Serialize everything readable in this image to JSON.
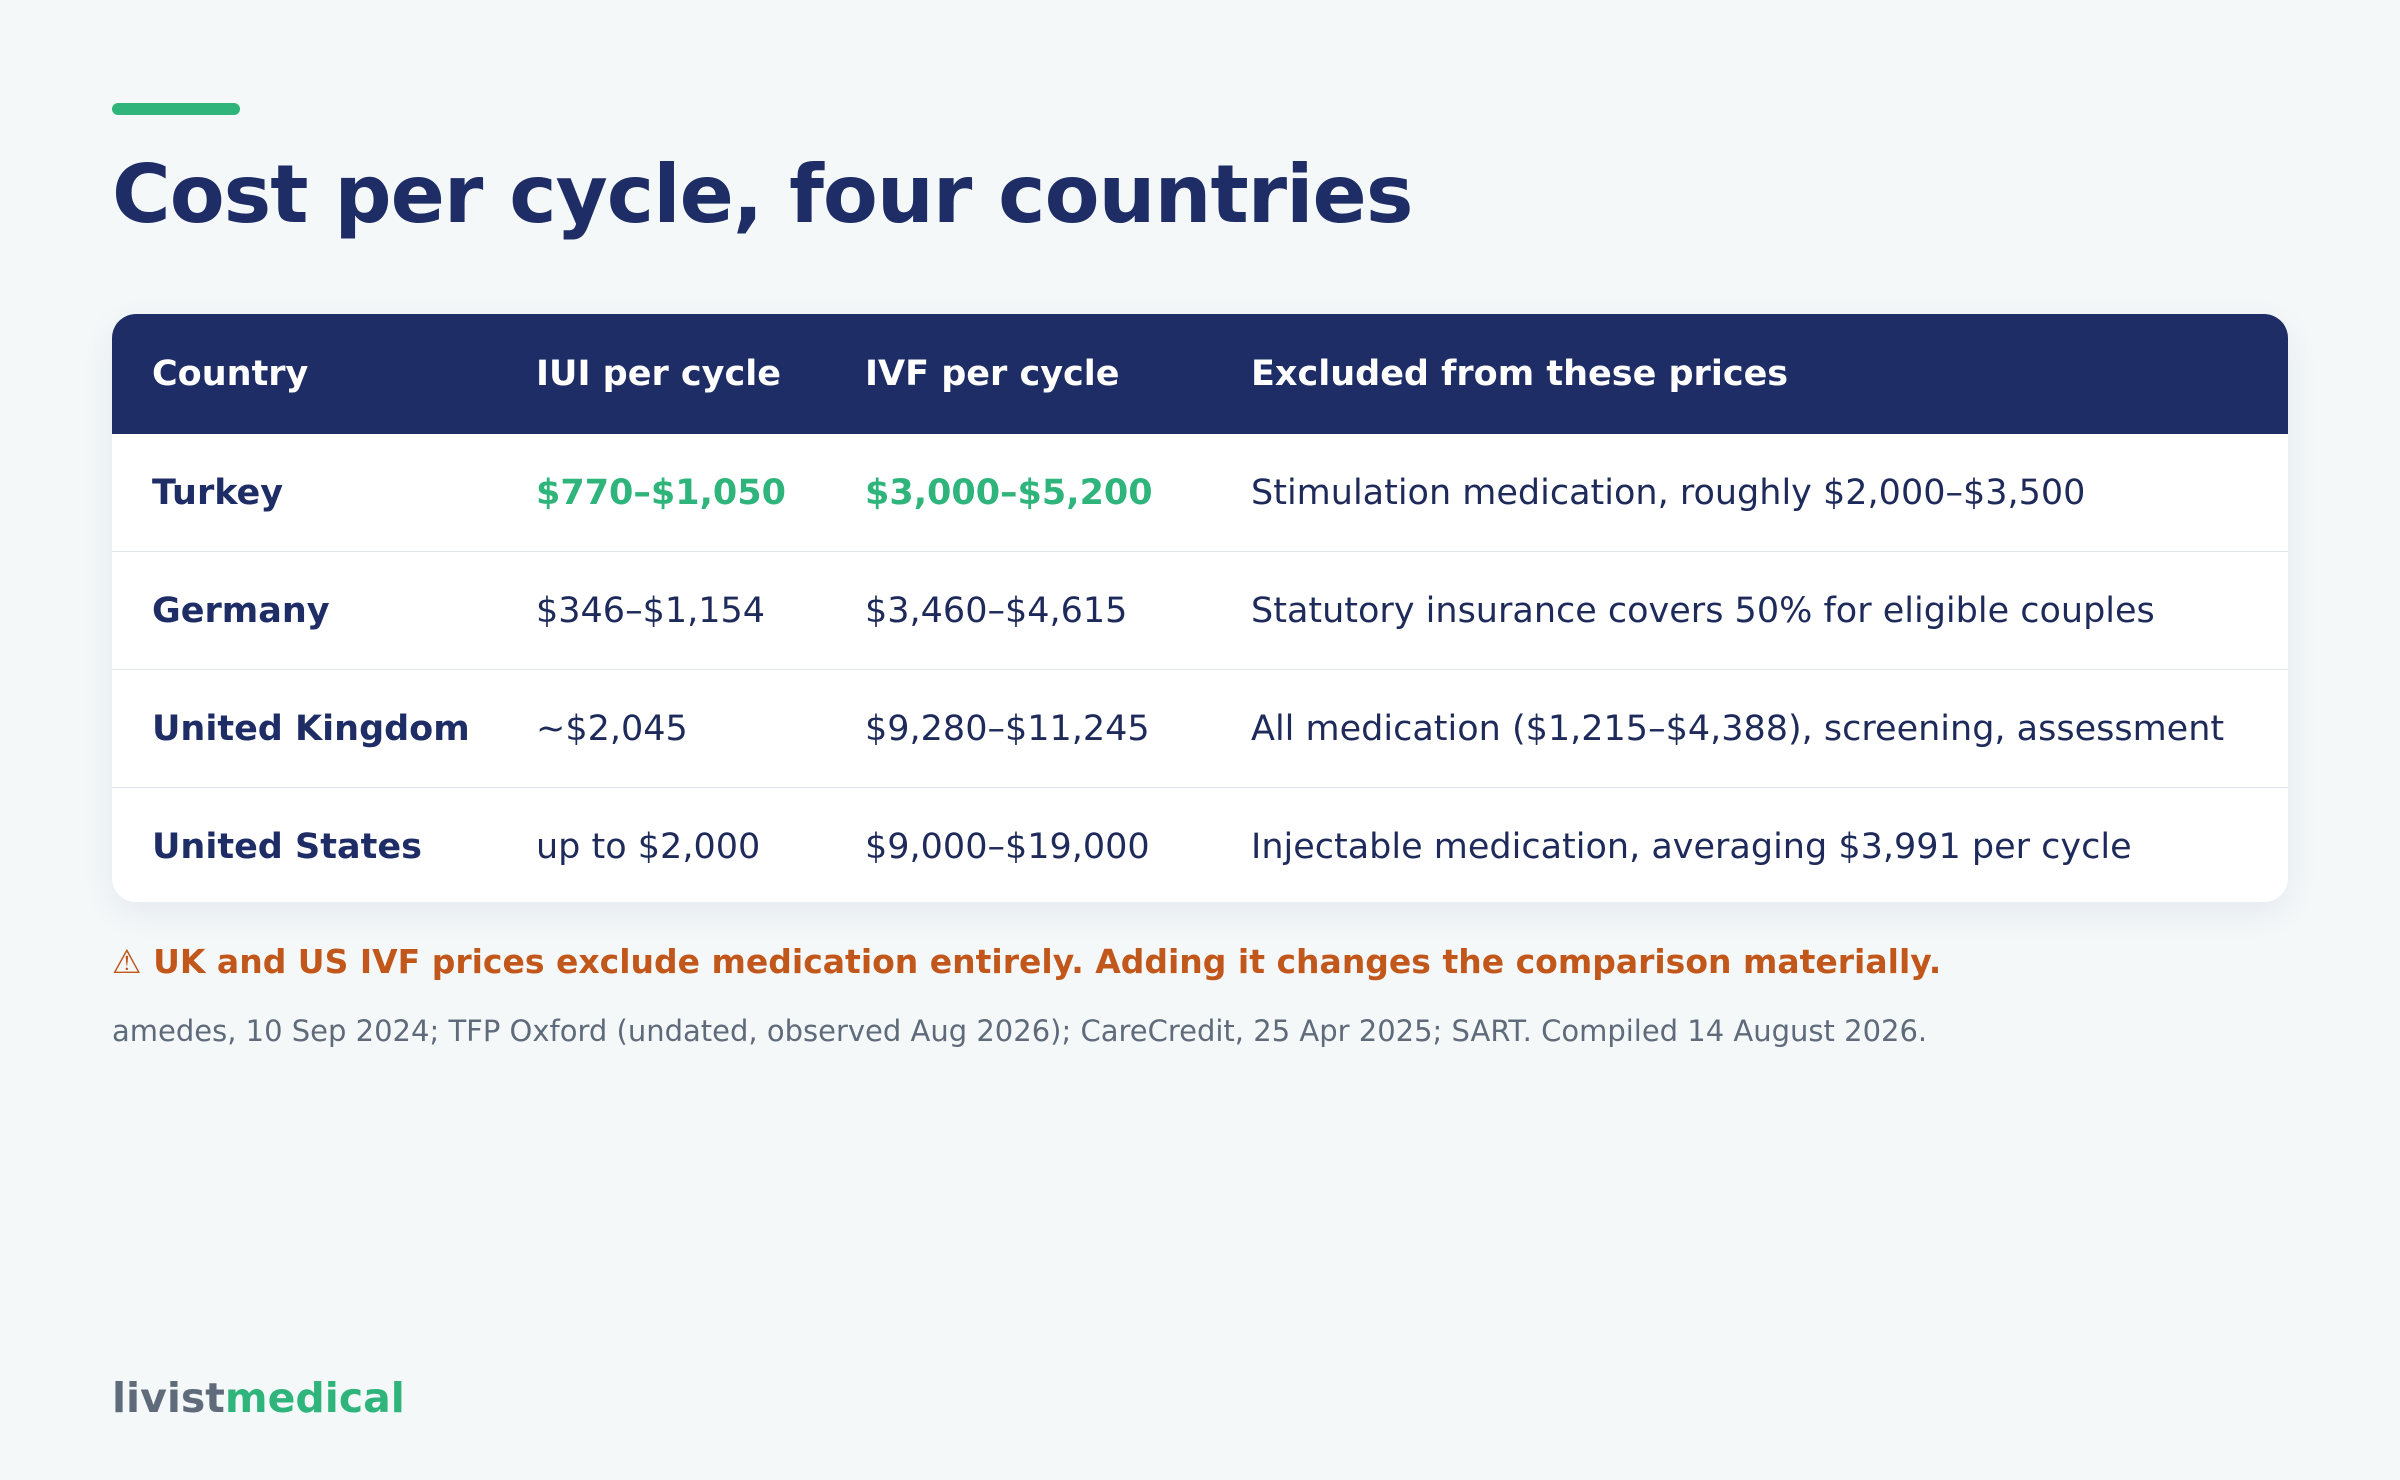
{
  "page": {
    "title": "Cost per cycle, four countries"
  },
  "table": {
    "headers": [
      "Country",
      "IUI per cycle",
      "IVF per cycle",
      "Excluded from these prices"
    ],
    "rows": [
      {
        "country": "Turkey",
        "iui": "$770–$1,050",
        "ivf": "$3,000–$5,200",
        "excluded": "Stimulation medication, roughly $2,000–$3,500",
        "highlighted": true
      },
      {
        "country": "Germany",
        "iui": "$346–$1,154",
        "ivf": "$3,460–$4,615",
        "excluded": "Statutory insurance covers 50% for eligible couples",
        "highlighted": false
      },
      {
        "country": "United Kingdom",
        "iui": "~$2,045",
        "ivf": "$9,280–$11,245",
        "excluded": "All medication ($1,215–$4,388), screening, assessment",
        "highlighted": false
      },
      {
        "country": "United States",
        "iui": "up to $2,000",
        "ivf": "$9,000–$19,000",
        "excluded": "Injectable medication, averaging $3,991 per cycle",
        "highlighted": false
      }
    ]
  },
  "warning": {
    "text": "⚠ UK and US IVF prices exclude medication entirely. Adding it changes the comparison materially."
  },
  "sources": {
    "text": "amedes, 10 Sep 2024; TFP Oxford (undated, observed Aug 2026); CareCredit, 25 Apr 2025; SART. Compiled 14 August 2026."
  },
  "logo": {
    "part1": "livist",
    "part2": "medical"
  },
  "colors": {
    "accent": "#2fb57b",
    "header_bg": "#1e2d66",
    "warning": "#c2571b",
    "background": "#f4f8f9"
  }
}
